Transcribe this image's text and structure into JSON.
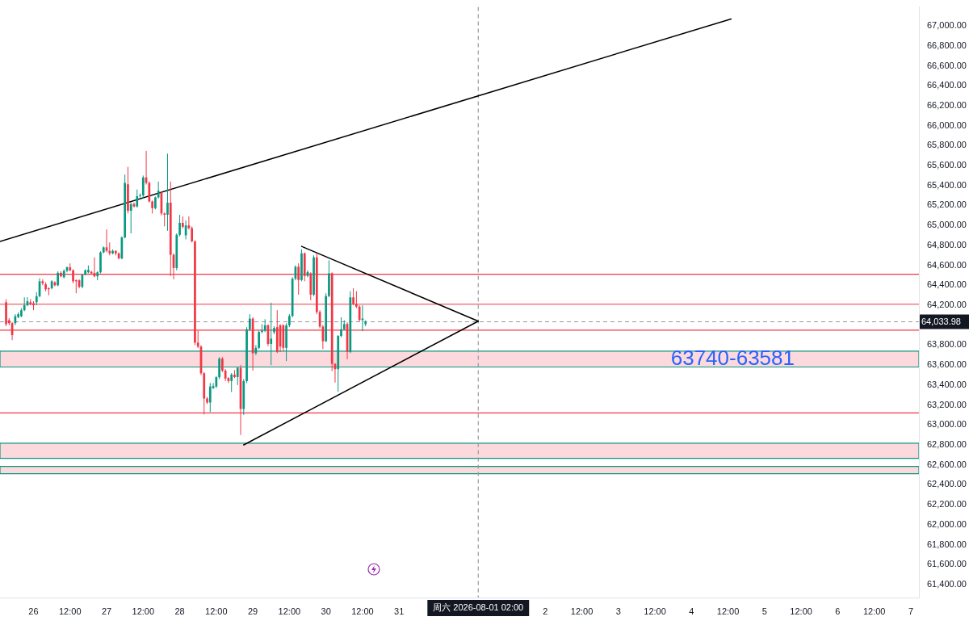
{
  "chart_data": {
    "type": "candlestick",
    "xlim": [
      "2026-07-25T13:00",
      "2026-08-07T02:40"
    ],
    "xticks": [
      {
        "value": "2026-07-26",
        "label": "26"
      },
      {
        "value": "2026-07-26T12:00",
        "label": "12:00"
      },
      {
        "value": "2026-07-27",
        "label": "27"
      },
      {
        "value": "2026-07-27T12:00",
        "label": "12:00"
      },
      {
        "value": "2026-07-28",
        "label": "28"
      },
      {
        "value": "2026-07-28T12:00",
        "label": "12:00"
      },
      {
        "value": "2026-07-29",
        "label": "29"
      },
      {
        "value": "2026-07-29T12:00",
        "label": "12:00"
      },
      {
        "value": "2026-07-30",
        "label": "30"
      },
      {
        "value": "2026-07-30T12:00",
        "label": "12:00"
      },
      {
        "value": "2026-07-31",
        "label": "31"
      },
      {
        "value": "2026-08-02",
        "label": "2"
      },
      {
        "value": "2026-08-02T12:00",
        "label": "12:00"
      },
      {
        "value": "2026-08-03",
        "label": "3"
      },
      {
        "value": "2026-08-03T12:00",
        "label": "12:00"
      },
      {
        "value": "2026-08-04",
        "label": "4"
      },
      {
        "value": "2026-08-04T12:00",
        "label": "12:00"
      },
      {
        "value": "2026-08-05",
        "label": "5"
      },
      {
        "value": "2026-08-05T12:00",
        "label": "12:00"
      },
      {
        "value": "2026-08-06",
        "label": "6"
      },
      {
        "value": "2026-08-06T12:00",
        "label": "12:00"
      },
      {
        "value": "2026-08-07",
        "label": "7"
      }
    ],
    "ylim": [
      61270,
      67190
    ],
    "yticks": [
      {
        "value": 61400,
        "label": "61,400.00"
      },
      {
        "value": 61600,
        "label": "61,600.00"
      },
      {
        "value": 61800,
        "label": "61,800.00"
      },
      {
        "value": 62000,
        "label": "62,000.00"
      },
      {
        "value": 62200,
        "label": "62,200.00"
      },
      {
        "value": 62400,
        "label": "62,400.00"
      },
      {
        "value": 62600,
        "label": "62,600.00"
      },
      {
        "value": 62800,
        "label": "62,800.00"
      },
      {
        "value": 63000,
        "label": "63,000.00"
      },
      {
        "value": 63200,
        "label": "63,200.00"
      },
      {
        "value": 63400,
        "label": "63,400.00"
      },
      {
        "value": 63600,
        "label": "63,600.00"
      },
      {
        "value": 63800,
        "label": "63,800.00"
      },
      {
        "value": 64200,
        "label": "64,200.00"
      },
      {
        "value": 64400,
        "label": "64,400.00"
      },
      {
        "value": 64600,
        "label": "64,600.00"
      },
      {
        "value": 64800,
        "label": "64,800.00"
      },
      {
        "value": 65000,
        "label": "65,000.00"
      },
      {
        "value": 65200,
        "label": "65,200.00"
      },
      {
        "value": 65400,
        "label": "65,400.00"
      },
      {
        "value": 65600,
        "label": "65,600.00"
      },
      {
        "value": 65800,
        "label": "65,800.00"
      },
      {
        "value": 66000,
        "label": "66,000.00"
      },
      {
        "value": 66200,
        "label": "66,200.00"
      },
      {
        "value": 66400,
        "label": "66,400.00"
      },
      {
        "value": 66600,
        "label": "66,600.00"
      },
      {
        "value": 66800,
        "label": "66,800.00"
      },
      {
        "value": 67000,
        "label": "67,000.00"
      }
    ],
    "bands": [
      {
        "axis": "y",
        "from": 63581,
        "to": 63740,
        "color": "#fbd9dc",
        "label": "63740-63581"
      },
      {
        "axis": "y",
        "from": 62665,
        "to": 62817,
        "color": "#fbd9dc"
      },
      {
        "axis": "y",
        "from": 62512,
        "to": 62584,
        "color": "#fbd9dc"
      }
    ],
    "ref_lines": [
      {
        "axis": "y",
        "value": 64510,
        "color": "#f23645"
      },
      {
        "axis": "y",
        "value": 64210,
        "color": "#f23645"
      },
      {
        "axis": "y",
        "value": 63950,
        "color": "#f23645"
      },
      {
        "axis": "y",
        "value": 63120,
        "color": "#f23645"
      },
      {
        "axis": "y",
        "value": 64033.98,
        "label": "64,033.98",
        "color": "#9598a1",
        "line_style": "dashed"
      },
      {
        "axis": "x",
        "value": "2026-08-01T02:00",
        "label": "周六 2026-08-01 02:00",
        "color": "#9598a1",
        "line_style": "dashed"
      }
    ],
    "series": [
      {
        "x": [
          "2026-07-25T15:00",
          "2026-07-25T16:00",
          "2026-07-25T17:00",
          "2026-07-25T18:00",
          "2026-07-25T19:00",
          "2026-07-25T20:00",
          "2026-07-25T21:00",
          "2026-07-25T22:00",
          "2026-07-25T23:00",
          "2026-07-26T00:00",
          "2026-07-26T01:00",
          "2026-07-26T02:00",
          "2026-07-26T03:00",
          "2026-07-26T04:00",
          "2026-07-26T05:00",
          "2026-07-26T06:00",
          "2026-07-26T07:00",
          "2026-07-26T08:00",
          "2026-07-26T09:00",
          "2026-07-26T10:00",
          "2026-07-26T11:00",
          "2026-07-26T12:00",
          "2026-07-26T13:00",
          "2026-07-26T14:00",
          "2026-07-26T15:00",
          "2026-07-26T16:00",
          "2026-07-26T17:00",
          "2026-07-26T18:00",
          "2026-07-26T19:00",
          "2026-07-26T20:00",
          "2026-07-26T21:00",
          "2026-07-26T22:00",
          "2026-07-26T23:00",
          "2026-07-27T00:00",
          "2026-07-27T01:00",
          "2026-07-27T02:00",
          "2026-07-27T03:00",
          "2026-07-27T04:00",
          "2026-07-27T05:00",
          "2026-07-27T06:00",
          "2026-07-27T07:00",
          "2026-07-27T08:00",
          "2026-07-27T09:00",
          "2026-07-27T10:00",
          "2026-07-27T11:00",
          "2026-07-27T12:00",
          "2026-07-27T13:00",
          "2026-07-27T14:00",
          "2026-07-27T15:00",
          "2026-07-27T16:00",
          "2026-07-27T17:00",
          "2026-07-27T18:00",
          "2026-07-27T19:00",
          "2026-07-27T20:00",
          "2026-07-27T21:00",
          "2026-07-27T22:00",
          "2026-07-27T23:00",
          "2026-07-28T00:00",
          "2026-07-28T01:00",
          "2026-07-28T02:00",
          "2026-07-28T03:00",
          "2026-07-28T04:00",
          "2026-07-28T05:00",
          "2026-07-28T06:00",
          "2026-07-28T07:00",
          "2026-07-28T08:00",
          "2026-07-28T09:00",
          "2026-07-28T10:00",
          "2026-07-28T11:00",
          "2026-07-28T12:00",
          "2026-07-28T13:00",
          "2026-07-28T14:00",
          "2026-07-28T15:00",
          "2026-07-28T16:00",
          "2026-07-28T17:00",
          "2026-07-28T18:00",
          "2026-07-28T19:00",
          "2026-07-28T20:00",
          "2026-07-28T21:00",
          "2026-07-28T22:00",
          "2026-07-28T23:00",
          "2026-07-29T00:00",
          "2026-07-29T01:00",
          "2026-07-29T02:00",
          "2026-07-29T03:00",
          "2026-07-29T04:00",
          "2026-07-29T05:00",
          "2026-07-29T06:00",
          "2026-07-29T07:00",
          "2026-07-29T08:00",
          "2026-07-29T09:00",
          "2026-07-29T10:00",
          "2026-07-29T11:00",
          "2026-07-29T12:00",
          "2026-07-29T13:00",
          "2026-07-29T14:00",
          "2026-07-29T15:00",
          "2026-07-29T16:00",
          "2026-07-29T17:00",
          "2026-07-29T18:00",
          "2026-07-29T19:00",
          "2026-07-29T20:00",
          "2026-07-29T21:00",
          "2026-07-29T22:00",
          "2026-07-29T23:00",
          "2026-07-30T00:00",
          "2026-07-30T01:00",
          "2026-07-30T02:00",
          "2026-07-30T03:00",
          "2026-07-30T04:00",
          "2026-07-30T05:00",
          "2026-07-30T06:00",
          "2026-07-30T07:00",
          "2026-07-30T08:00",
          "2026-07-30T09:00",
          "2026-07-30T10:00",
          "2026-07-30T11:00",
          "2026-07-30T12:00",
          "2026-07-30T13:00"
        ],
        "ohlc": [
          [
            64230,
            64260,
            63990,
            64010
          ],
          [
            64050,
            64070,
            64000,
            64020
          ],
          [
            64020,
            64030,
            63850,
            63900
          ],
          [
            64020,
            64110,
            64000,
            64090
          ],
          [
            64080,
            64130,
            64070,
            64110
          ],
          [
            64090,
            64170,
            64080,
            64150
          ],
          [
            64150,
            64280,
            64140,
            64200
          ],
          [
            64200,
            64280,
            64190,
            64240
          ],
          [
            64230,
            64260,
            64200,
            64210
          ],
          [
            64220,
            64240,
            64150,
            64200
          ],
          [
            64230,
            64330,
            64200,
            64290
          ],
          [
            64290,
            64470,
            64280,
            64440
          ],
          [
            64440,
            64460,
            64400,
            64420
          ],
          [
            64410,
            64430,
            64340,
            64360
          ],
          [
            64370,
            64380,
            64300,
            64360
          ],
          [
            64370,
            64450,
            64360,
            64440
          ],
          [
            64430,
            64440,
            64390,
            64400
          ],
          [
            64400,
            64540,
            64390,
            64525
          ],
          [
            64525,
            64540,
            64480,
            64490
          ],
          [
            64480,
            64560,
            64470,
            64545
          ],
          [
            64545,
            64590,
            64530,
            64580
          ],
          [
            64580,
            64620,
            64540,
            64550
          ],
          [
            64550,
            64560,
            64420,
            64440
          ],
          [
            64450,
            64460,
            64320,
            64440
          ],
          [
            64450,
            64460,
            64370,
            64385
          ],
          [
            64385,
            64510,
            64370,
            64505
          ],
          [
            64505,
            64560,
            64500,
            64550
          ],
          [
            64530,
            64600,
            64520,
            64555
          ],
          [
            64535,
            64545,
            64510,
            64520
          ],
          [
            64525,
            64680,
            64480,
            64490
          ],
          [
            64490,
            64540,
            64450,
            64530
          ],
          [
            64530,
            64740,
            64520,
            64730
          ],
          [
            64730,
            64790,
            64720,
            64780
          ],
          [
            64780,
            64960,
            64730,
            64745
          ],
          [
            64745,
            64830,
            64700,
            64720
          ],
          [
            64720,
            64760,
            64710,
            64745
          ],
          [
            64745,
            64750,
            64700,
            64720
          ],
          [
            64720,
            64730,
            64660,
            64670
          ],
          [
            64670,
            64890,
            64660,
            64880
          ],
          [
            64880,
            65510,
            64870,
            65427
          ],
          [
            65413,
            65587,
            65120,
            65147
          ],
          [
            65147,
            65230,
            64920,
            65213
          ],
          [
            65213,
            65230,
            65180,
            65190
          ],
          [
            65190,
            65360,
            65180,
            65293
          ],
          [
            65293,
            65320,
            65280,
            65300
          ],
          [
            65300,
            65500,
            65270,
            65480
          ],
          [
            65480,
            65747,
            65410,
            65427
          ],
          [
            65427,
            65440,
            65230,
            65240
          ],
          [
            65240,
            65250,
            65120,
            65173
          ],
          [
            65173,
            65290,
            65160,
            65280
          ],
          [
            65280,
            65440,
            65270,
            65347
          ],
          [
            65330,
            65340,
            65100,
            65120
          ],
          [
            65120,
            65130,
            64990,
            65107
          ],
          [
            65107,
            65720,
            64946,
            65227
          ],
          [
            65227,
            65440,
            64493,
            64706
          ],
          [
            64706,
            64720,
            64460,
            64573
          ],
          [
            64573,
            64920,
            64550,
            64906
          ],
          [
            64906,
            65106,
            64890,
            65026
          ],
          [
            65026,
            65090,
            64970,
            64986
          ],
          [
            64900,
            65050,
            64860,
            65000
          ],
          [
            65000,
            65090,
            64960,
            64973
          ],
          [
            64973,
            64990,
            64830,
            64840
          ],
          [
            64840,
            64850,
            63800,
            63825
          ],
          [
            63825,
            63945,
            63770,
            63785
          ],
          [
            63785,
            63800,
            63500,
            63518
          ],
          [
            63518,
            63530,
            63105,
            63265
          ],
          [
            63265,
            63280,
            63210,
            63225
          ],
          [
            63225,
            63420,
            63130,
            63385
          ],
          [
            63370,
            63420,
            63360,
            63390
          ],
          [
            63385,
            63490,
            63370,
            63478
          ],
          [
            63478,
            63680,
            63460,
            63665
          ],
          [
            63665,
            63680,
            63530,
            63545
          ],
          [
            63545,
            63560,
            63440,
            63465
          ],
          [
            63470,
            63480,
            63420,
            63440
          ],
          [
            63440,
            63520,
            63330,
            63505
          ],
          [
            63505,
            63550,
            63470,
            63480
          ],
          [
            63480,
            63580,
            63400,
            63572
          ],
          [
            63572,
            63600,
            62900,
            63160
          ],
          [
            63160,
            63460,
            63100,
            63440
          ],
          [
            63440,
            63980,
            63420,
            63959
          ],
          [
            63959,
            64110,
            63940,
            64066
          ],
          [
            64066,
            64080,
            63545,
            63719
          ],
          [
            63719,
            63800,
            63700,
            63772
          ],
          [
            63772,
            63945,
            63760,
            63932
          ],
          [
            63932,
            64010,
            63920,
            63945
          ],
          [
            63945,
            64060,
            63930,
            63999
          ],
          [
            63999,
            64010,
            63790,
            63812
          ],
          [
            63812,
            64226,
            63600,
            63865
          ],
          [
            63930,
            63990,
            63910,
            63972
          ],
          [
            63980,
            64150,
            63720,
            63732
          ],
          [
            63999,
            64010,
            63730,
            63786
          ],
          [
            63999,
            64010,
            63740,
            63772
          ],
          [
            63772,
            64020,
            63640,
            63999
          ],
          [
            63999,
            64110,
            63980,
            64092
          ],
          [
            64092,
            64480,
            64080,
            64466
          ],
          [
            64466,
            64600,
            64450,
            64586
          ],
          [
            64586,
            64620,
            64306,
            64453
          ],
          [
            64453,
            64760,
            64440,
            64720
          ],
          [
            64720,
            64730,
            64440,
            64493
          ],
          [
            64493,
            64550,
            64480,
            64533
          ],
          [
            64520,
            64530,
            64250,
            64306
          ],
          [
            64306,
            64700,
            64290,
            64680
          ],
          [
            64680,
            64720,
            64110,
            64132
          ],
          [
            64132,
            64150,
            63970,
            63986
          ],
          [
            63986,
            64000,
            63760,
            63839
          ],
          [
            63839,
            64320,
            63830,
            64292
          ],
          [
            64292,
            64650,
            64280,
            64520
          ],
          [
            64520,
            64530,
            63540,
            63612
          ],
          [
            63612,
            63620,
            63425,
            63559
          ],
          [
            63559,
            63900,
            63332,
            63892
          ],
          [
            63892,
            64080,
            63880,
            63959
          ],
          [
            63959,
            64050,
            63950,
            64012
          ],
          [
            64012,
            64030,
            63660,
            63732
          ],
          [
            63732,
            64340,
            63720,
            64279
          ],
          [
            64279,
            64370,
            64200,
            64213
          ],
          [
            64213,
            64340,
            64170,
            64186
          ],
          [
            64186,
            64200,
            64040,
            64052
          ],
          [
            64052,
            64199,
            63940,
            64066
          ],
          [
            64010,
            64050,
            63990,
            64033.98
          ]
        ],
        "colors": [
          "#f23645",
          "#f23645",
          "#f23645",
          "#089981",
          "#089981",
          "#089981",
          "#089981",
          "#089981",
          "#f23645",
          "#f23645",
          "#089981",
          "#089981",
          "#f23645",
          "#f23645",
          "#f23645",
          "#089981",
          "#f23645",
          "#089981",
          "#f23645",
          "#089981",
          "#089981",
          "#f23645",
          "#f23645",
          "#f23645",
          "#f23645",
          "#089981",
          "#089981",
          "#089981",
          "#f23645",
          "#f23645",
          "#089981",
          "#089981",
          "#089981",
          "#f23645",
          "#f23645",
          "#089981",
          "#f23645",
          "#f23645",
          "#089981",
          "#089981",
          "#f23645",
          "#089981",
          "#f23645",
          "#089981",
          "#089981",
          "#089981",
          "#f23645",
          "#f23645",
          "#f23645",
          "#089981",
          "#089981",
          "#f23645",
          "#f23645",
          "#089981",
          "#f23645",
          "#f23645",
          "#089981",
          "#089981",
          "#f23645",
          "#089981",
          "#f23645",
          "#f23645",
          "#f23645",
          "#f23645",
          "#f23645",
          "#f23645",
          "#f23645",
          "#089981",
          "#089981",
          "#089981",
          "#089981",
          "#f23645",
          "#f23645",
          "#f23645",
          "#089981",
          "#f23645",
          "#089981",
          "#f23645",
          "#089981",
          "#089981",
          "#089981",
          "#f23645",
          "#089981",
          "#089981",
          "#089981",
          "#089981",
          "#f23645",
          "#089981",
          "#089981",
          "#f23645",
          "#f23645",
          "#f23645",
          "#089981",
          "#089981",
          "#089981",
          "#089981",
          "#f23645",
          "#089981",
          "#f23645",
          "#089981",
          "#f23645",
          "#089981",
          "#f23645",
          "#f23645",
          "#f23645",
          "#089981",
          "#089981",
          "#f23645",
          "#f23645",
          "#089981",
          "#089981",
          "#089981",
          "#f23645",
          "#089981",
          "#f23645",
          "#f23645",
          "#f23645",
          "#089981",
          "#089981"
        ]
      },
      {
        "type": "line",
        "color": "#000000",
        "x": [
          "2026-07-25T13:00",
          "2026-08-04T13:00"
        ],
        "values": [
          64840,
          67070
        ]
      },
      {
        "type": "line",
        "color": "#000000",
        "x": [
          "2026-07-29T16:00",
          "2026-08-01T02:00"
        ],
        "values": [
          64790,
          64040
        ]
      },
      {
        "type": "line",
        "color": "#000000",
        "x": [
          "2026-07-28T21:00",
          "2026-08-01T02:00"
        ],
        "values": [
          62800,
          64040
        ]
      }
    ]
  }
}
